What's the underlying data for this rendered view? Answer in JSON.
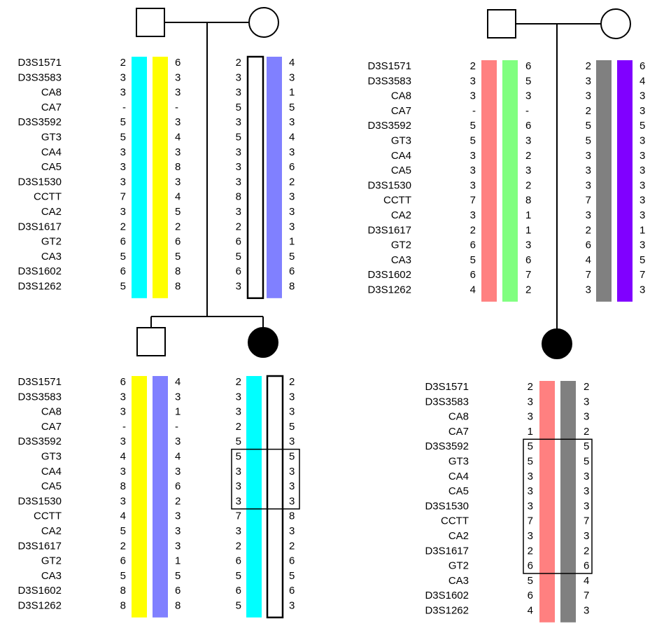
{
  "markers": [
    "D3S1571",
    "D3S3583",
    "CA8",
    "CA7",
    "D3S3592",
    "GT3",
    "CA4",
    "CA5",
    "D3S1530",
    "CCTT",
    "CA2",
    "D3S1617",
    "GT2",
    "CA3",
    "D3S1602",
    "D3S1262"
  ],
  "colors": {
    "cyan": "#00ffff",
    "yellow": "#ffff00",
    "blue": "#8080ff",
    "salmon": "#ff8080",
    "green": "#80ff80",
    "gray": "#808080",
    "purple": "#8000ff",
    "white": "#ffffff"
  },
  "families": [
    {
      "name": "family-1",
      "parents": [
        {
          "role": "father",
          "alleles": [
            [
              "2",
              "3",
              "3",
              "-",
              "5",
              "5",
              "3",
              "3",
              "3",
              "7",
              "3",
              "2",
              "6",
              "5",
              "6",
              "5"
            ],
            [
              "6",
              "3",
              "3",
              "-",
              "3",
              "4",
              "3",
              "8",
              "3",
              "4",
              "5",
              "2",
              "6",
              "5",
              "8",
              "8"
            ]
          ],
          "haplotype_colors": [
            "cyan",
            "yellow"
          ]
        },
        {
          "role": "mother",
          "alleles": [
            [
              "2",
              "3",
              "3",
              "5",
              "3",
              "5",
              "3",
              "3",
              "3",
              "8",
              "3",
              "2",
              "6",
              "5",
              "6",
              "3"
            ],
            [
              "4",
              "3",
              "1",
              "5",
              "3",
              "4",
              "3",
              "6",
              "2",
              "3",
              "3",
              "3",
              "1",
              "5",
              "6",
              "8"
            ]
          ],
          "haplotype_colors": [
            "white",
            "blue"
          ]
        }
      ],
      "children": [
        {
          "role": "unaffected-son",
          "alleles": [
            [
              "6",
              "3",
              "3",
              "-",
              "3",
              "4",
              "3",
              "8",
              "3",
              "4",
              "5",
              "2",
              "6",
              "5",
              "8",
              "8"
            ],
            [
              "4",
              "3",
              "1",
              "-",
              "3",
              "4",
              "3",
              "6",
              "2",
              "3",
              "3",
              "3",
              "1",
              "5",
              "6",
              "8"
            ]
          ],
          "haplotype_colors": [
            "yellow",
            "blue"
          ]
        },
        {
          "role": "affected-daughter",
          "alleles": [
            [
              "2",
              "3",
              "3",
              "2",
              "5",
              "5",
              "3",
              "3",
              "3",
              "7",
              "3",
              "2",
              "6",
              "5",
              "6",
              "5"
            ],
            [
              "2",
              "3",
              "3",
              "5",
              "3",
              "5",
              "3",
              "3",
              "3",
              "8",
              "3",
              "2",
              "6",
              "5",
              "6",
              "3"
            ]
          ],
          "haplotype_colors": [
            "cyan",
            "white"
          ]
        }
      ]
    },
    {
      "name": "family-2",
      "parents": [
        {
          "role": "father",
          "alleles": [
            [
              "2",
              "3",
              "3",
              "-",
              "5",
              "5",
              "3",
              "3",
              "3",
              "7",
              "3",
              "2",
              "6",
              "5",
              "6",
              "4"
            ],
            [
              "6",
              "5",
              "3",
              "-",
              "6",
              "3",
              "2",
              "3",
              "2",
              "8",
              "1",
              "1",
              "3",
              "6",
              "7",
              "2"
            ]
          ],
          "haplotype_colors": [
            "salmon",
            "green"
          ]
        },
        {
          "role": "mother",
          "alleles": [
            [
              "2",
              "3",
              "3",
              "2",
              "5",
              "5",
              "3",
              "3",
              "3",
              "7",
              "3",
              "2",
              "6",
              "4",
              "7",
              "3"
            ],
            [
              "6",
              "4",
              "3",
              "3",
              "5",
              "3",
              "3",
              "3",
              "3",
              "3",
              "3",
              "1",
              "3",
              "5",
              "7",
              "3"
            ]
          ],
          "haplotype_colors": [
            "gray",
            "purple"
          ]
        }
      ],
      "children": [
        {
          "role": "affected-daughter",
          "alleles": [
            [
              "2",
              "3",
              "3",
              "1",
              "5",
              "5",
              "3",
              "3",
              "3",
              "7",
              "3",
              "2",
              "6",
              "5",
              "6",
              "4"
            ],
            [
              "2",
              "3",
              "3",
              "2",
              "5",
              "5",
              "3",
              "3",
              "3",
              "7",
              "3",
              "2",
              "6",
              "4",
              "7",
              "3"
            ]
          ],
          "haplotype_colors": [
            "salmon",
            "gray"
          ]
        }
      ]
    }
  ]
}
